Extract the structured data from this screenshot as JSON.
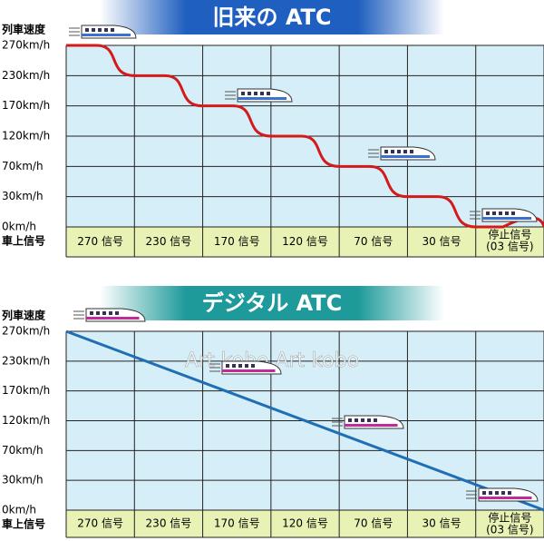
{
  "panels": [
    {
      "title": "旧来の ATC",
      "speed_title": "列車速度",
      "speeds": [
        "270km/h",
        "230km/h",
        "170km/h",
        "120km/h",
        "70km/h",
        "30km/h",
        "0km/h"
      ],
      "signal_title": "車上信号",
      "signals": [
        "270 信号",
        "230 信号",
        "170 信号",
        "120 信号",
        "70 信号",
        "30 信号"
      ],
      "stop_signal": [
        "停止信号",
        "(03 信号)"
      ]
    },
    {
      "title": "デジタル ATC",
      "speed_title": "列車速度",
      "speeds": [
        "270km/h",
        "230km/h",
        "170km/h",
        "120km/h",
        "70km/h",
        "30km/h",
        "0km/h"
      ],
      "signal_title": "車上信号",
      "signals": [
        "270 信号",
        "230 信号",
        "170 信号",
        "120 信号",
        "70 信号",
        "30 信号"
      ],
      "stop_signal": [
        "停止信号",
        "(03 信号)"
      ]
    }
  ],
  "watermark": "Art kobo   Art kobo"
}
